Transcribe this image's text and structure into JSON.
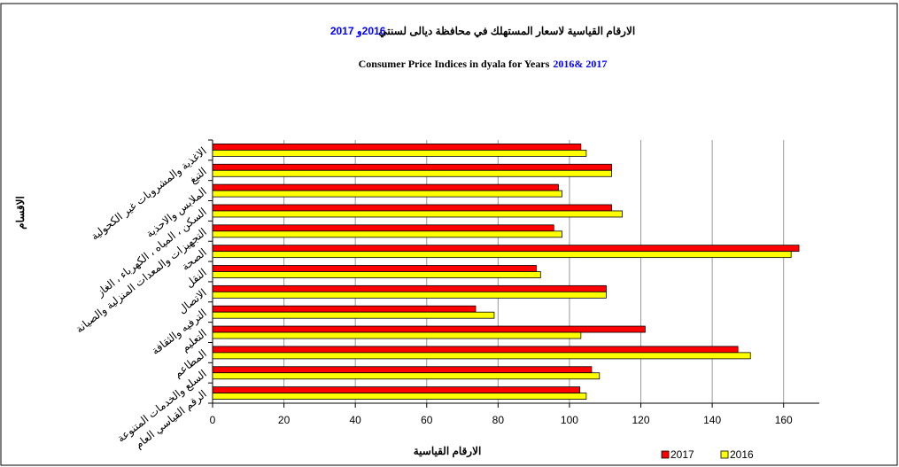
{
  "chart_data": {
    "type": "hbar",
    "title": "الارقام القياسية لاسعار المستهلك في محافظة ديالى لسنتي",
    "title_years": "2016و 2017",
    "subtitle": "Consumer Price Indices in dyala for Years",
    "subtitle_years": "2016& 2017",
    "y_label": "الاقسام",
    "x_label": "الارقام القياسية",
    "categories": [
      "الاغذية والمشروبات غير الكحولية",
      "التبغ",
      "الملابس والاحذية",
      "السكن ، المياه ، الكهرباء ، الغاز",
      "التجهيزات والمعدات المنزلية والصيانة",
      "الصحة",
      "النقل",
      "الاتصال",
      "الترفيه والثقافة",
      "التعليم",
      "المطاعم",
      "السلع والخدمات المتنوعة",
      "الرقم القياسي العام"
    ],
    "series": [
      {
        "name": "2017",
        "color": "#ff0000",
        "values": [
          103.2,
          111.8,
          96.9,
          111.8,
          95.6,
          164.3,
          90.7,
          110.3,
          73.7,
          121.2,
          147.2,
          106.2,
          102.9
        ]
      },
      {
        "name": "2016",
        "color": "#ffff00",
        "values": [
          104.7,
          111.8,
          97.9,
          114.8,
          97.9,
          162.1,
          91.9,
          110.3,
          78.9,
          103.2,
          150.7,
          108.4,
          104.7
        ]
      }
    ],
    "xlim": [
      0,
      170
    ],
    "xticks": [
      0,
      20,
      40,
      60,
      80,
      100,
      120,
      140,
      160
    ],
    "grid": true,
    "legend": "bottom-right"
  }
}
